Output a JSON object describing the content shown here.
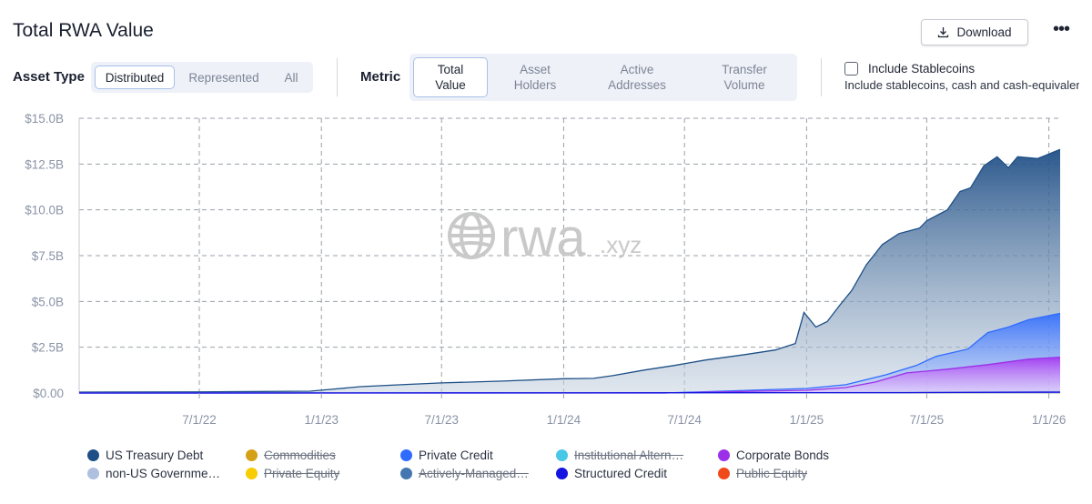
{
  "header": {
    "title": "Total RWA Value",
    "download_label": "Download",
    "more_label": "•••"
  },
  "asset_type": {
    "label": "Asset Type",
    "options": [
      "Distributed",
      "Represented",
      "All"
    ],
    "selected": "Distributed"
  },
  "metric": {
    "label": "Metric",
    "options": [
      {
        "line1": "Total",
        "line2": "Value"
      },
      {
        "line1": "Asset",
        "line2": "Holders"
      },
      {
        "line1": "Active",
        "line2": "Addresses"
      },
      {
        "line1": "Transfer",
        "line2": "Volume"
      }
    ],
    "selected": "Total Value"
  },
  "stablecoins": {
    "checked": false,
    "label": "Include Stablecoins",
    "description": "Include stablecoins, cash and cash-equivalents"
  },
  "watermark": {
    "brand": "rwa",
    "suffix": ".xyz"
  },
  "chart_data": {
    "type": "area",
    "stacked": false,
    "ylim": [
      0,
      15000000000
    ],
    "y_ticks": [
      "$0.00",
      "$2.5B",
      "$5.0B",
      "$7.5B",
      "$10.0B",
      "$12.5B",
      "$15.0B"
    ],
    "y_tick_values": [
      0,
      2500000000,
      5000000000,
      7500000000,
      10000000000,
      12500000000,
      15000000000
    ],
    "x_ticks": [
      "7/1/22",
      "1/1/23",
      "7/1/23",
      "1/1/24",
      "7/1/24",
      "1/1/25",
      "7/1/25",
      "1/1/26"
    ],
    "x_tick_values": [
      "2022-07-01",
      "2023-01-01",
      "2023-07-01",
      "2024-01-01",
      "2024-07-01",
      "2025-01-01",
      "2025-07-01",
      "2026-01-01"
    ],
    "xlim": [
      "2022-01-01",
      "2026-01-18"
    ],
    "grid": true,
    "legend_position": "bottom",
    "series": [
      {
        "name": "US Treasury Debt",
        "color": "#1d4f86",
        "visible": true,
        "points": [
          [
            "2022-01-01",
            0.05
          ],
          [
            "2022-07-01",
            0.06
          ],
          [
            "2022-12-15",
            0.1
          ],
          [
            "2023-01-15",
            0.2
          ],
          [
            "2023-03-01",
            0.35
          ],
          [
            "2023-05-01",
            0.45
          ],
          [
            "2023-07-01",
            0.55
          ],
          [
            "2023-10-01",
            0.65
          ],
          [
            "2024-01-01",
            0.78
          ],
          [
            "2024-02-15",
            0.8
          ],
          [
            "2024-03-15",
            0.95
          ],
          [
            "2024-05-01",
            1.25
          ],
          [
            "2024-06-15",
            1.5
          ],
          [
            "2024-08-01",
            1.8
          ],
          [
            "2024-10-01",
            2.1
          ],
          [
            "2024-11-15",
            2.35
          ],
          [
            "2024-12-15",
            2.7
          ],
          [
            "2024-12-28",
            4.4
          ],
          [
            "2025-01-15",
            3.6
          ],
          [
            "2025-02-01",
            3.9
          ],
          [
            "2025-02-20",
            4.8
          ],
          [
            "2025-03-10",
            5.6
          ],
          [
            "2025-04-01",
            7.0
          ],
          [
            "2025-04-25",
            8.1
          ],
          [
            "2025-05-20",
            8.7
          ],
          [
            "2025-06-20",
            9.0
          ],
          [
            "2025-07-01",
            9.4
          ],
          [
            "2025-08-01",
            10.0
          ],
          [
            "2025-08-20",
            11.0
          ],
          [
            "2025-09-05",
            11.2
          ],
          [
            "2025-09-25",
            12.4
          ],
          [
            "2025-10-15",
            12.9
          ],
          [
            "2025-11-01",
            12.3
          ],
          [
            "2025-11-15",
            12.9
          ],
          [
            "2025-12-15",
            12.8
          ],
          [
            "2026-01-18",
            13.3
          ]
        ]
      },
      {
        "name": "Private Credit",
        "color": "#2f6bff",
        "visible": true,
        "points": [
          [
            "2022-01-01",
            0.0
          ],
          [
            "2024-06-01",
            0.0
          ],
          [
            "2025-01-01",
            0.25
          ],
          [
            "2025-03-01",
            0.45
          ],
          [
            "2025-05-01",
            1.0
          ],
          [
            "2025-06-15",
            1.5
          ],
          [
            "2025-07-15",
            2.0
          ],
          [
            "2025-09-01",
            2.4
          ],
          [
            "2025-10-01",
            3.3
          ],
          [
            "2025-11-01",
            3.6
          ],
          [
            "2025-12-01",
            4.0
          ],
          [
            "2026-01-18",
            4.35
          ]
        ]
      },
      {
        "name": "Corporate Bonds",
        "color": "#9b30e8",
        "visible": true,
        "points": [
          [
            "2022-01-01",
            0.0
          ],
          [
            "2024-06-01",
            0.0
          ],
          [
            "2025-01-01",
            0.15
          ],
          [
            "2025-03-01",
            0.3
          ],
          [
            "2025-04-15",
            0.6
          ],
          [
            "2025-06-01",
            1.1
          ],
          [
            "2025-08-01",
            1.3
          ],
          [
            "2025-10-01",
            1.55
          ],
          [
            "2025-12-01",
            1.85
          ],
          [
            "2026-01-18",
            1.95
          ]
        ]
      },
      {
        "name": "non-US Government Debt",
        "color": "#a9bbdf",
        "visible": true,
        "points": [
          [
            "2022-01-01",
            0.0
          ],
          [
            "2025-01-01",
            0.02
          ],
          [
            "2025-07-01",
            0.05
          ],
          [
            "2026-01-18",
            0.08
          ]
        ]
      },
      {
        "name": "Structured Credit",
        "color": "#1414e0",
        "visible": true,
        "points": [
          [
            "2022-01-01",
            0.0
          ],
          [
            "2025-06-01",
            0.02
          ],
          [
            "2026-01-18",
            0.05
          ]
        ]
      },
      {
        "name": "Commodities",
        "color": "#d4a017",
        "visible": false,
        "points": []
      },
      {
        "name": "Private Equity",
        "color": "#f7cc00",
        "visible": false,
        "points": []
      },
      {
        "name": "Actively-Managed Strategies",
        "color": "#4477b0",
        "visible": false,
        "points": []
      },
      {
        "name": "Institutional Alternative Funds",
        "color": "#48c7e6",
        "visible": false,
        "points": []
      },
      {
        "name": "Public Equity",
        "color": "#f04a1a",
        "visible": false,
        "points": []
      }
    ],
    "y_unit": "B"
  },
  "legend": [
    {
      "label": "US Treasury Debt",
      "color": "#1d4f86",
      "visible": true
    },
    {
      "label": "non-US Governme…",
      "color": "#aebfe0",
      "visible": true
    },
    {
      "label": "Commodities",
      "color": "#d4a017",
      "visible": false
    },
    {
      "label": "Private Equity",
      "color": "#f7cc00",
      "visible": false
    },
    {
      "label": "Private Credit",
      "color": "#2f6bff",
      "visible": true
    },
    {
      "label": "Actively-Managed…",
      "color": "#4477b0",
      "visible": false
    },
    {
      "label": "Institutional Altern…",
      "color": "#48c7e6",
      "visible": false
    },
    {
      "label": "Structured Credit",
      "color": "#1414e0",
      "visible": true
    },
    {
      "label": "Corporate Bonds",
      "color": "#9b30e8",
      "visible": true
    },
    {
      "label": "Public Equity",
      "color": "#f04a1a",
      "visible": false
    }
  ]
}
